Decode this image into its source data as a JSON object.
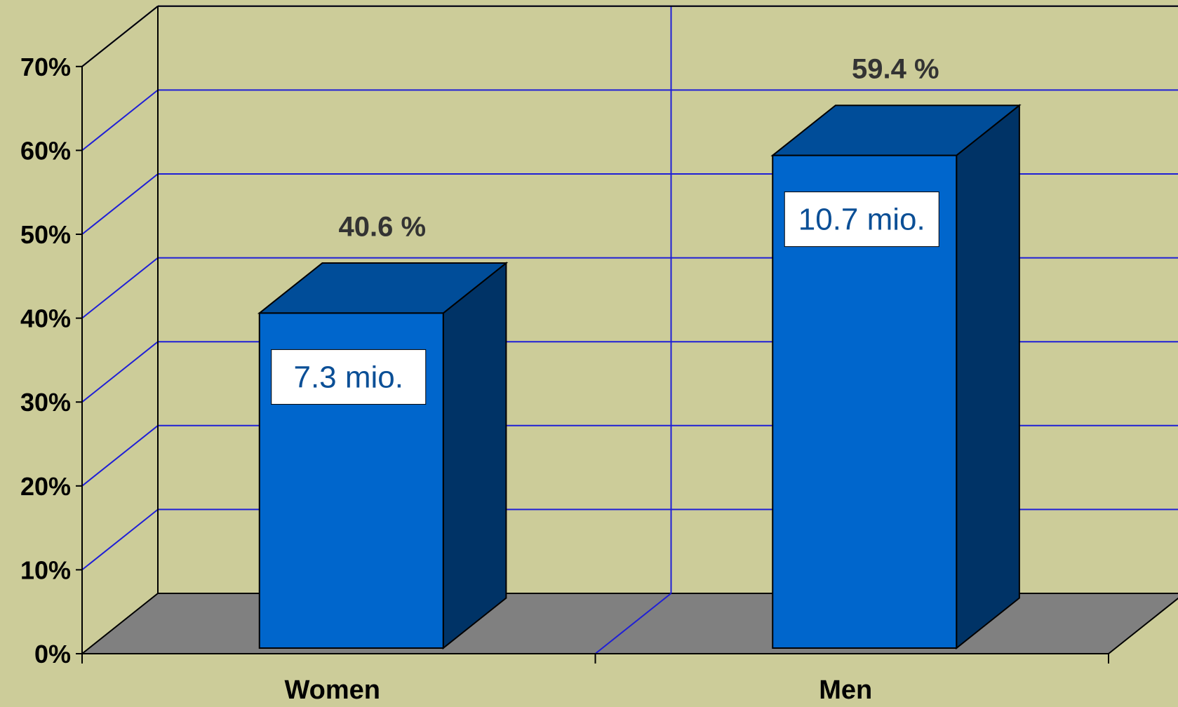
{
  "chart_data": {
    "type": "bar",
    "categories": [
      "Women",
      "Men"
    ],
    "values": [
      40.6,
      59.4
    ],
    "value_labels": [
      "40.6 %",
      "59.4 %"
    ],
    "count_labels": [
      "7.3 mio.",
      "10.7 mio."
    ],
    "y_ticks": [
      "0%",
      "10%",
      "20%",
      "30%",
      "40%",
      "50%",
      "60%",
      "70%"
    ],
    "ylim": [
      0,
      70
    ],
    "y_unit": "%",
    "grid": true,
    "style": "3d"
  },
  "colors": {
    "background": "#cccc99",
    "floor": "#808080",
    "gridline": "#1f1fd6",
    "bar_front": "#0066cc",
    "bar_top": "#004d99",
    "bar_side": "#003366",
    "label_box": "#ffffff",
    "count_text": "#0b4f96",
    "value_text": "#333333"
  }
}
